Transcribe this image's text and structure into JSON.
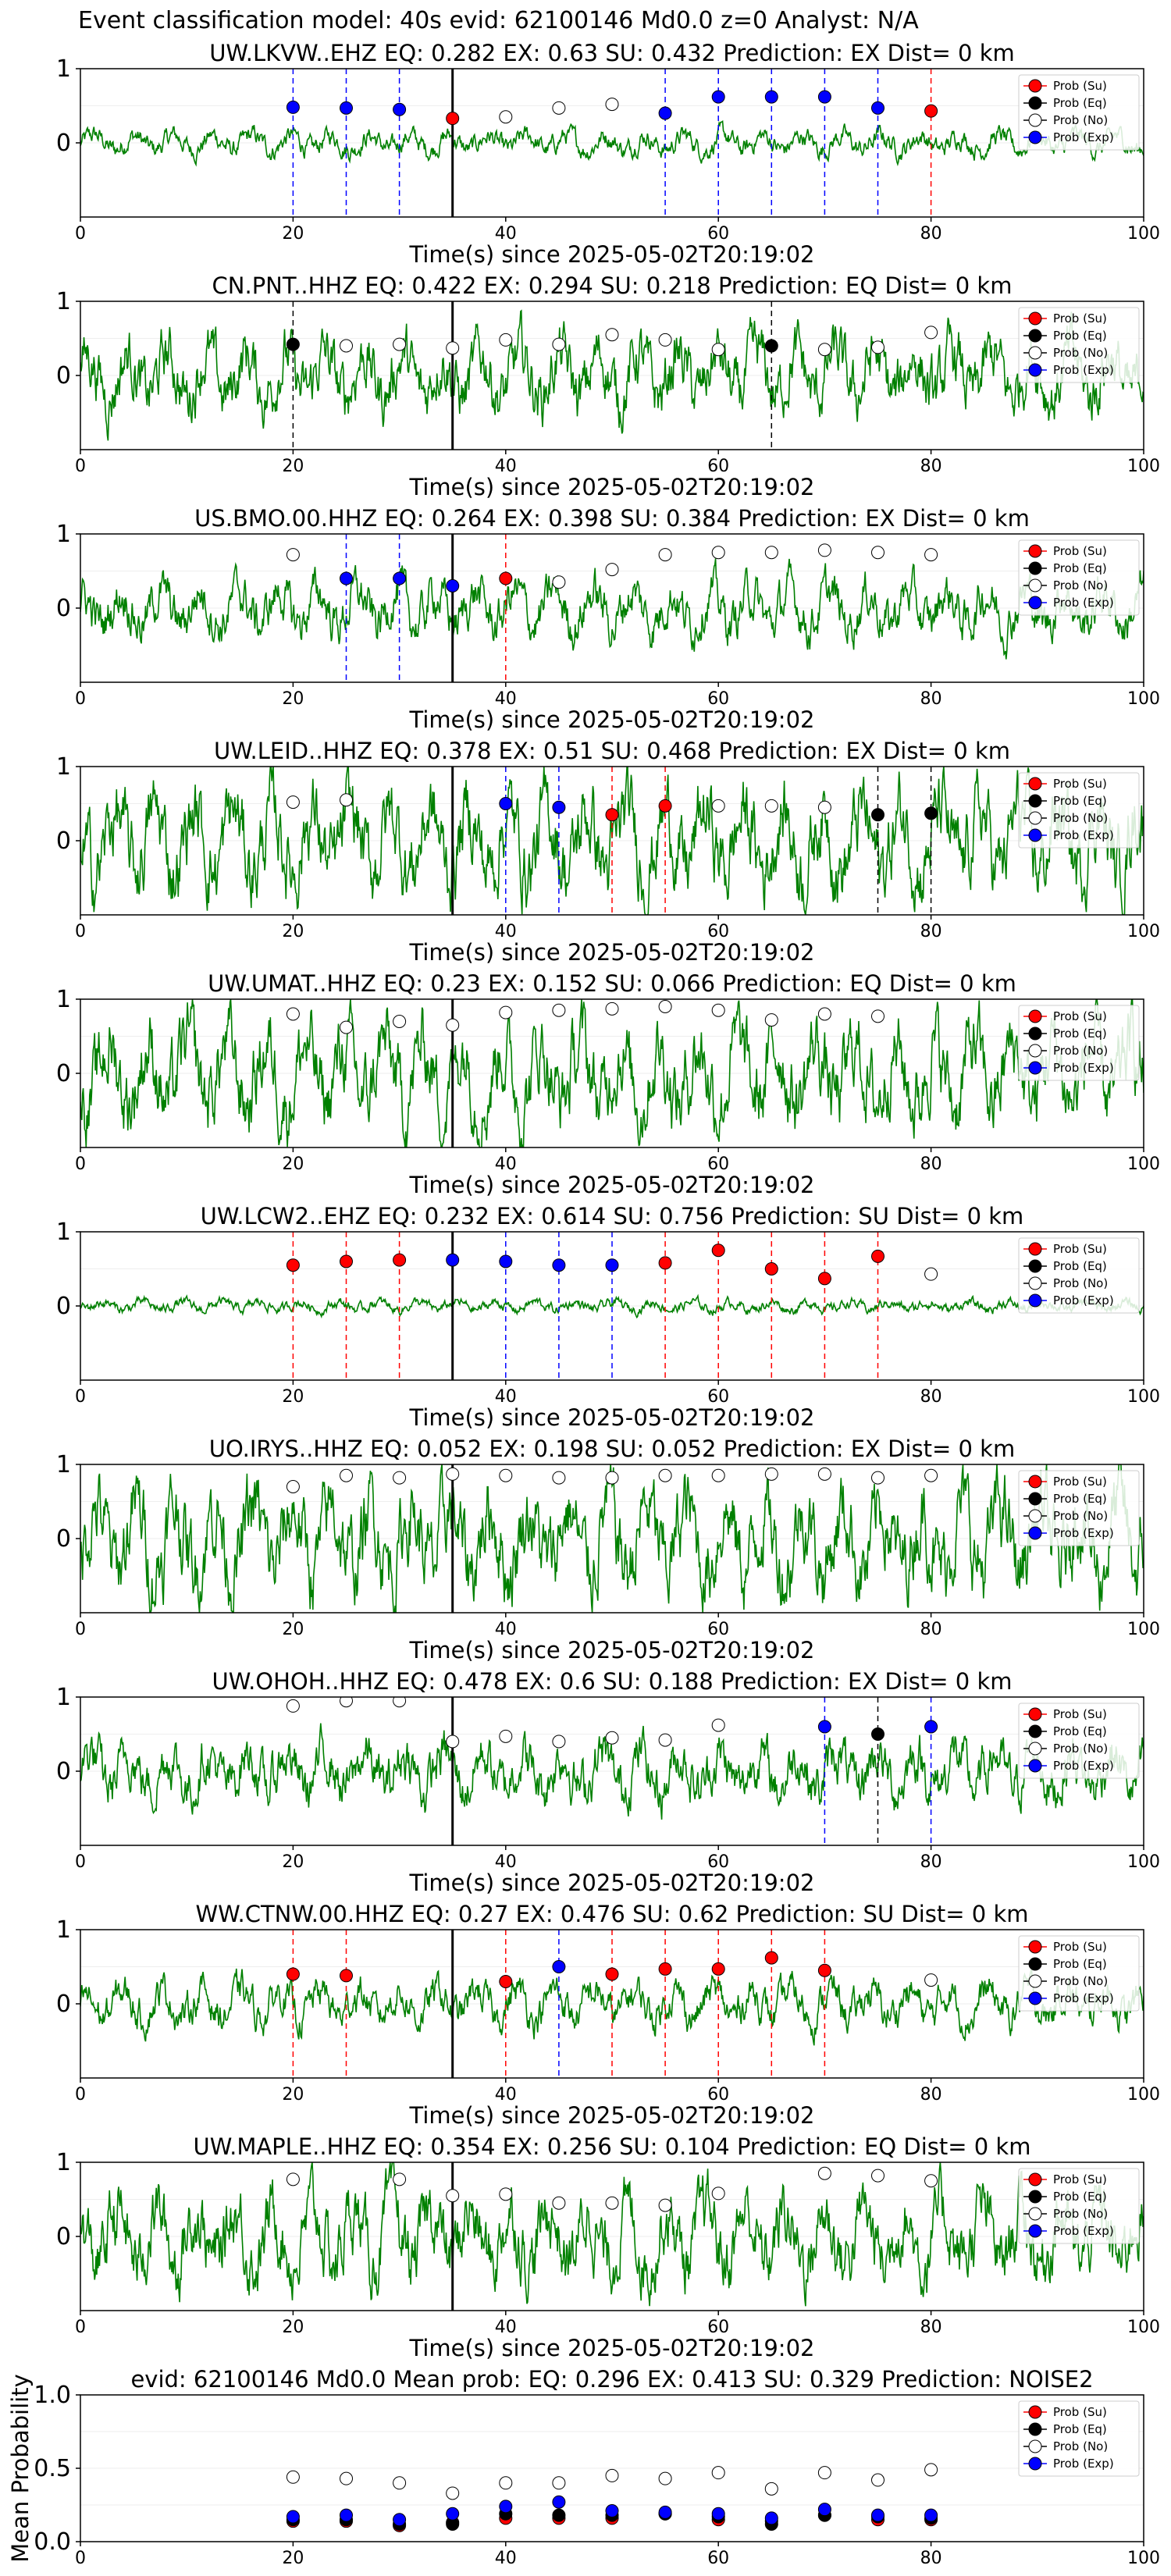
{
  "figure_title": "Event classification model: 40s evid: 62100146 Md0.0 z=0 Analyst: N/A",
  "colors": {
    "waveform": "#008000",
    "su": "#ff0000",
    "eq": "#000000",
    "no": "#ffffff",
    "exp": "#0000ff",
    "arrival_line": "#000000"
  },
  "legend_labels": [
    "Prob (Su)",
    "Prob (Eq)",
    "Prob (No)",
    "Prob (Exp)"
  ],
  "chart_data": [
    {
      "type": "line",
      "title": "UW.LKVW..EHZ    EQ: 0.282  EX: 0.63  SU: 0.432    Prediction: EX     Dist= 0 km",
      "xlabel": "Time(s) since 2025-05-02T20:19:02",
      "xlim": [
        0,
        100
      ],
      "x_ticks": [
        0,
        20,
        40,
        60,
        80,
        100
      ],
      "ylim": [
        -1,
        1
      ],
      "y_ticks": [
        0,
        1
      ],
      "arrival_time": 35,
      "amplitude": 0.2,
      "legend": "top-right",
      "points": [
        {
          "t": 20,
          "p": 0.48,
          "c": "exp"
        },
        {
          "t": 25,
          "p": 0.47,
          "c": "exp"
        },
        {
          "t": 30,
          "p": 0.45,
          "c": "exp"
        },
        {
          "t": 35,
          "p": 0.33,
          "c": "su"
        },
        {
          "t": 40,
          "p": 0.35,
          "c": "no"
        },
        {
          "t": 45,
          "p": 0.47,
          "c": "no"
        },
        {
          "t": 50,
          "p": 0.52,
          "c": "no"
        },
        {
          "t": 55,
          "p": 0.4,
          "c": "exp"
        },
        {
          "t": 60,
          "p": 0.62,
          "c": "exp"
        },
        {
          "t": 65,
          "p": 0.62,
          "c": "exp"
        },
        {
          "t": 70,
          "p": 0.62,
          "c": "exp"
        },
        {
          "t": 75,
          "p": 0.47,
          "c": "exp"
        },
        {
          "t": 80,
          "p": 0.43,
          "c": "su"
        }
      ]
    },
    {
      "type": "line",
      "title": "CN.PNT..HHZ    EQ: 0.422  EX: 0.294  SU: 0.218    Prediction: EQ     Dist= 0 km",
      "xlabel": "Time(s) since 2025-05-02T20:19:02",
      "xlim": [
        0,
        100
      ],
      "x_ticks": [
        0,
        20,
        40,
        60,
        80,
        100
      ],
      "ylim": [
        -1,
        1
      ],
      "y_ticks": [
        0,
        1
      ],
      "arrival_time": 35,
      "amplitude": 0.6,
      "legend": "top-right",
      "points": [
        {
          "t": 20,
          "p": 0.42,
          "c": "eq"
        },
        {
          "t": 25,
          "p": 0.4,
          "c": "no"
        },
        {
          "t": 30,
          "p": 0.42,
          "c": "no"
        },
        {
          "t": 35,
          "p": 0.37,
          "c": "no"
        },
        {
          "t": 40,
          "p": 0.48,
          "c": "no"
        },
        {
          "t": 45,
          "p": 0.42,
          "c": "no"
        },
        {
          "t": 50,
          "p": 0.55,
          "c": "no"
        },
        {
          "t": 55,
          "p": 0.48,
          "c": "no"
        },
        {
          "t": 60,
          "p": 0.35,
          "c": "no"
        },
        {
          "t": 65,
          "p": 0.4,
          "c": "eq"
        },
        {
          "t": 70,
          "p": 0.35,
          "c": "no"
        },
        {
          "t": 75,
          "p": 0.38,
          "c": "no"
        },
        {
          "t": 80,
          "p": 0.58,
          "c": "no"
        }
      ]
    },
    {
      "type": "line",
      "title": "US.BMO.00.HHZ    EQ: 0.264  EX: 0.398  SU: 0.384    Prediction: EX     Dist= 0 km",
      "xlabel": "Time(s) since 2025-05-02T20:19:02",
      "xlim": [
        0,
        100
      ],
      "x_ticks": [
        0,
        20,
        40,
        60,
        80,
        100
      ],
      "ylim": [
        -1,
        1
      ],
      "y_ticks": [
        0,
        1
      ],
      "arrival_time": 35,
      "amplitude": 0.45,
      "legend": "top-right",
      "points": [
        {
          "t": 20,
          "p": 0.72,
          "c": "no"
        },
        {
          "t": 25,
          "p": 0.4,
          "c": "exp"
        },
        {
          "t": 30,
          "p": 0.4,
          "c": "exp"
        },
        {
          "t": 35,
          "p": 0.3,
          "c": "exp"
        },
        {
          "t": 40,
          "p": 0.4,
          "c": "su"
        },
        {
          "t": 45,
          "p": 0.35,
          "c": "no"
        },
        {
          "t": 50,
          "p": 0.52,
          "c": "no"
        },
        {
          "t": 55,
          "p": 0.72,
          "c": "no"
        },
        {
          "t": 60,
          "p": 0.75,
          "c": "no"
        },
        {
          "t": 65,
          "p": 0.75,
          "c": "no"
        },
        {
          "t": 70,
          "p": 0.78,
          "c": "no"
        },
        {
          "t": 75,
          "p": 0.75,
          "c": "no"
        },
        {
          "t": 80,
          "p": 0.72,
          "c": "no"
        }
      ]
    },
    {
      "type": "line",
      "title": "UW.LEID..HHZ    EQ: 0.378  EX: 0.51  SU: 0.468    Prediction: EX     Dist= 0 km",
      "xlabel": "Time(s) since 2025-05-02T20:19:02",
      "xlim": [
        0,
        100
      ],
      "x_ticks": [
        0,
        20,
        40,
        60,
        80,
        100
      ],
      "ylim": [
        -1,
        1
      ],
      "y_ticks": [
        0,
        1
      ],
      "arrival_time": 35,
      "amplitude": 0.8,
      "legend": "top-right",
      "points": [
        {
          "t": 20,
          "p": 0.52,
          "c": "no"
        },
        {
          "t": 25,
          "p": 0.55,
          "c": "no"
        },
        {
          "t": 40,
          "p": 0.5,
          "c": "exp"
        },
        {
          "t": 45,
          "p": 0.45,
          "c": "exp"
        },
        {
          "t": 50,
          "p": 0.35,
          "c": "su"
        },
        {
          "t": 55,
          "p": 0.47,
          "c": "su"
        },
        {
          "t": 60,
          "p": 0.47,
          "c": "no"
        },
        {
          "t": 65,
          "p": 0.47,
          "c": "no"
        },
        {
          "t": 70,
          "p": 0.45,
          "c": "no"
        },
        {
          "t": 75,
          "p": 0.35,
          "c": "eq"
        },
        {
          "t": 80,
          "p": 0.37,
          "c": "eq"
        }
      ]
    },
    {
      "type": "line",
      "title": "UW.UMAT..HHZ    EQ: 0.23  EX: 0.152  SU: 0.066    Prediction: EQ     Dist= 0 km",
      "xlabel": "Time(s) since 2025-05-02T20:19:02",
      "xlim": [
        0,
        100
      ],
      "x_ticks": [
        0,
        20,
        40,
        60,
        80,
        100
      ],
      "ylim": [
        -1,
        1
      ],
      "y_ticks": [
        0,
        1
      ],
      "arrival_time": 35,
      "amplitude": 0.8,
      "legend": "top-right",
      "points": [
        {
          "t": 20,
          "p": 0.8,
          "c": "no"
        },
        {
          "t": 25,
          "p": 0.62,
          "c": "no"
        },
        {
          "t": 30,
          "p": 0.7,
          "c": "no"
        },
        {
          "t": 35,
          "p": 0.65,
          "c": "no"
        },
        {
          "t": 40,
          "p": 0.82,
          "c": "no"
        },
        {
          "t": 45,
          "p": 0.85,
          "c": "no"
        },
        {
          "t": 50,
          "p": 0.87,
          "c": "no"
        },
        {
          "t": 55,
          "p": 0.9,
          "c": "no"
        },
        {
          "t": 60,
          "p": 0.85,
          "c": "no"
        },
        {
          "t": 65,
          "p": 0.72,
          "c": "no"
        },
        {
          "t": 70,
          "p": 0.8,
          "c": "no"
        },
        {
          "t": 75,
          "p": 0.77,
          "c": "no"
        }
      ]
    },
    {
      "type": "line",
      "title": "UW.LCW2..EHZ    EQ: 0.232  EX: 0.614  SU: 0.756    Prediction: SU     Dist= 0 km",
      "xlabel": "Time(s) since 2025-05-02T20:19:02",
      "xlim": [
        0,
        100
      ],
      "x_ticks": [
        0,
        20,
        40,
        60,
        80,
        100
      ],
      "ylim": [
        -1,
        1
      ],
      "y_ticks": [
        0,
        1
      ],
      "arrival_time": 35,
      "amplitude": 0.1,
      "legend": "top-right",
      "points": [
        {
          "t": 20,
          "p": 0.55,
          "c": "su"
        },
        {
          "t": 25,
          "p": 0.6,
          "c": "su"
        },
        {
          "t": 30,
          "p": 0.62,
          "c": "su"
        },
        {
          "t": 35,
          "p": 0.62,
          "c": "exp"
        },
        {
          "t": 40,
          "p": 0.6,
          "c": "exp"
        },
        {
          "t": 45,
          "p": 0.55,
          "c": "exp"
        },
        {
          "t": 50,
          "p": 0.55,
          "c": "exp"
        },
        {
          "t": 55,
          "p": 0.58,
          "c": "su"
        },
        {
          "t": 60,
          "p": 0.75,
          "c": "su"
        },
        {
          "t": 65,
          "p": 0.5,
          "c": "su"
        },
        {
          "t": 70,
          "p": 0.37,
          "c": "su"
        },
        {
          "t": 75,
          "p": 0.67,
          "c": "su"
        },
        {
          "t": 80,
          "p": 0.43,
          "c": "no"
        }
      ]
    },
    {
      "type": "line",
      "title": "UO.IRYS..HHZ    EQ: 0.052  EX: 0.198  SU: 0.052    Prediction: EX     Dist= 0 km",
      "xlabel": "Time(s) since 2025-05-02T20:19:02",
      "xlim": [
        0,
        100
      ],
      "x_ticks": [
        0,
        20,
        40,
        60,
        80,
        100
      ],
      "ylim": [
        -1,
        1
      ],
      "y_ticks": [
        0,
        1
      ],
      "arrival_time": 35,
      "amplitude": 0.85,
      "legend": "top-right",
      "points": [
        {
          "t": 20,
          "p": 0.7,
          "c": "no"
        },
        {
          "t": 25,
          "p": 0.85,
          "c": "no"
        },
        {
          "t": 30,
          "p": 0.82,
          "c": "no"
        },
        {
          "t": 35,
          "p": 0.87,
          "c": "no"
        },
        {
          "t": 40,
          "p": 0.85,
          "c": "no"
        },
        {
          "t": 45,
          "p": 0.82,
          "c": "no"
        },
        {
          "t": 50,
          "p": 0.82,
          "c": "no"
        },
        {
          "t": 55,
          "p": 0.85,
          "c": "no"
        },
        {
          "t": 60,
          "p": 0.85,
          "c": "no"
        },
        {
          "t": 65,
          "p": 0.87,
          "c": "no"
        },
        {
          "t": 70,
          "p": 0.87,
          "c": "no"
        },
        {
          "t": 75,
          "p": 0.82,
          "c": "no"
        },
        {
          "t": 80,
          "p": 0.85,
          "c": "no"
        }
      ]
    },
    {
      "type": "line",
      "title": "UW.OHOH..HHZ    EQ: 0.478  EX: 0.6  SU: 0.188    Prediction: EX     Dist= 0 km",
      "xlabel": "Time(s) since 2025-05-02T20:19:02",
      "xlim": [
        0,
        100
      ],
      "x_ticks": [
        0,
        20,
        40,
        60,
        80,
        100
      ],
      "ylim": [
        -1,
        1
      ],
      "y_ticks": [
        0,
        1
      ],
      "arrival_time": 35,
      "amplitude": 0.5,
      "legend": "top-right",
      "points": [
        {
          "t": 20,
          "p": 0.88,
          "c": "no"
        },
        {
          "t": 25,
          "p": 0.95,
          "c": "no"
        },
        {
          "t": 30,
          "p": 0.95,
          "c": "no"
        },
        {
          "t": 35,
          "p": 0.4,
          "c": "no"
        },
        {
          "t": 40,
          "p": 0.47,
          "c": "no"
        },
        {
          "t": 45,
          "p": 0.4,
          "c": "no"
        },
        {
          "t": 50,
          "p": 0.45,
          "c": "no"
        },
        {
          "t": 55,
          "p": 0.42,
          "c": "no"
        },
        {
          "t": 60,
          "p": 0.62,
          "c": "no"
        },
        {
          "t": 70,
          "p": 0.6,
          "c": "exp"
        },
        {
          "t": 75,
          "p": 0.5,
          "c": "eq"
        },
        {
          "t": 80,
          "p": 0.6,
          "c": "exp"
        }
      ]
    },
    {
      "type": "line",
      "title": "WW.CTNW.00.HHZ    EQ: 0.27  EX: 0.476  SU: 0.62    Prediction: SU     Dist= 0 km",
      "xlabel": "Time(s) since 2025-05-02T20:19:02",
      "xlim": [
        0,
        100
      ],
      "x_ticks": [
        0,
        20,
        40,
        60,
        80,
        100
      ],
      "ylim": [
        -1,
        1
      ],
      "y_ticks": [
        0,
        1
      ],
      "arrival_time": 35,
      "amplitude": 0.35,
      "legend": "top-right",
      "points": [
        {
          "t": 20,
          "p": 0.4,
          "c": "su"
        },
        {
          "t": 25,
          "p": 0.38,
          "c": "su"
        },
        {
          "t": 40,
          "p": 0.3,
          "c": "su"
        },
        {
          "t": 45,
          "p": 0.5,
          "c": "exp"
        },
        {
          "t": 50,
          "p": 0.4,
          "c": "su"
        },
        {
          "t": 55,
          "p": 0.47,
          "c": "su"
        },
        {
          "t": 60,
          "p": 0.47,
          "c": "su"
        },
        {
          "t": 65,
          "p": 0.62,
          "c": "su"
        },
        {
          "t": 70,
          "p": 0.45,
          "c": "su"
        },
        {
          "t": 80,
          "p": 0.32,
          "c": "no"
        }
      ]
    },
    {
      "type": "line",
      "title": "UW.MAPLE..HHZ    EQ: 0.354  EX: 0.256  SU: 0.104    Prediction: EQ     Dist= 0 km",
      "xlabel": "Time(s) since 2025-05-02T20:19:02",
      "xlim": [
        0,
        100
      ],
      "x_ticks": [
        0,
        20,
        40,
        60,
        80,
        100
      ],
      "ylim": [
        -1,
        1
      ],
      "y_ticks": [
        0,
        1
      ],
      "arrival_time": 35,
      "amplitude": 0.7,
      "legend": "top-right",
      "points": [
        {
          "t": 20,
          "p": 0.77,
          "c": "no"
        },
        {
          "t": 30,
          "p": 0.77,
          "c": "no"
        },
        {
          "t": 35,
          "p": 0.55,
          "c": "no"
        },
        {
          "t": 40,
          "p": 0.57,
          "c": "no"
        },
        {
          "t": 45,
          "p": 0.45,
          "c": "no"
        },
        {
          "t": 50,
          "p": 0.45,
          "c": "no"
        },
        {
          "t": 55,
          "p": 0.42,
          "c": "no"
        },
        {
          "t": 60,
          "p": 0.58,
          "c": "no"
        },
        {
          "t": 70,
          "p": 0.85,
          "c": "no"
        },
        {
          "t": 75,
          "p": 0.82,
          "c": "no"
        },
        {
          "t": 80,
          "p": 0.75,
          "c": "no"
        }
      ]
    },
    {
      "type": "scatter",
      "title": "evid: 62100146  Md0.0   Mean prob:   EQ: 0.296  EX: 0.413  SU: 0.329   Prediction: NOISE2",
      "ylabel": "Mean Probability",
      "xlim": [
        0,
        100
      ],
      "x_ticks": [
        0,
        20,
        40,
        60,
        80,
        100
      ],
      "ylim": [
        0,
        1
      ],
      "y_ticks": [
        "0.0",
        "0.5",
        "1.0"
      ],
      "legend": "top-right",
      "x": [
        20,
        25,
        30,
        35,
        40,
        45,
        50,
        55,
        60,
        65,
        70,
        75,
        80
      ],
      "series": [
        {
          "name": "Prob (Su)",
          "c": "su",
          "values": [
            0.14,
            0.14,
            0.11,
            0.13,
            0.16,
            0.16,
            0.16,
            0.19,
            0.15,
            0.14,
            0.18,
            0.15,
            0.15
          ]
        },
        {
          "name": "Prob (Eq)",
          "c": "eq",
          "values": [
            0.15,
            0.15,
            0.12,
            0.12,
            0.19,
            0.18,
            0.18,
            0.19,
            0.17,
            0.12,
            0.18,
            0.17,
            0.16
          ]
        },
        {
          "name": "Prob (No)",
          "c": "no",
          "values": [
            0.44,
            0.43,
            0.4,
            0.33,
            0.4,
            0.4,
            0.45,
            0.43,
            0.47,
            0.36,
            0.47,
            0.42,
            0.49
          ]
        },
        {
          "name": "Prob (Exp)",
          "c": "exp",
          "values": [
            0.17,
            0.18,
            0.15,
            0.19,
            0.24,
            0.27,
            0.21,
            0.2,
            0.19,
            0.16,
            0.22,
            0.18,
            0.18
          ]
        }
      ]
    }
  ]
}
